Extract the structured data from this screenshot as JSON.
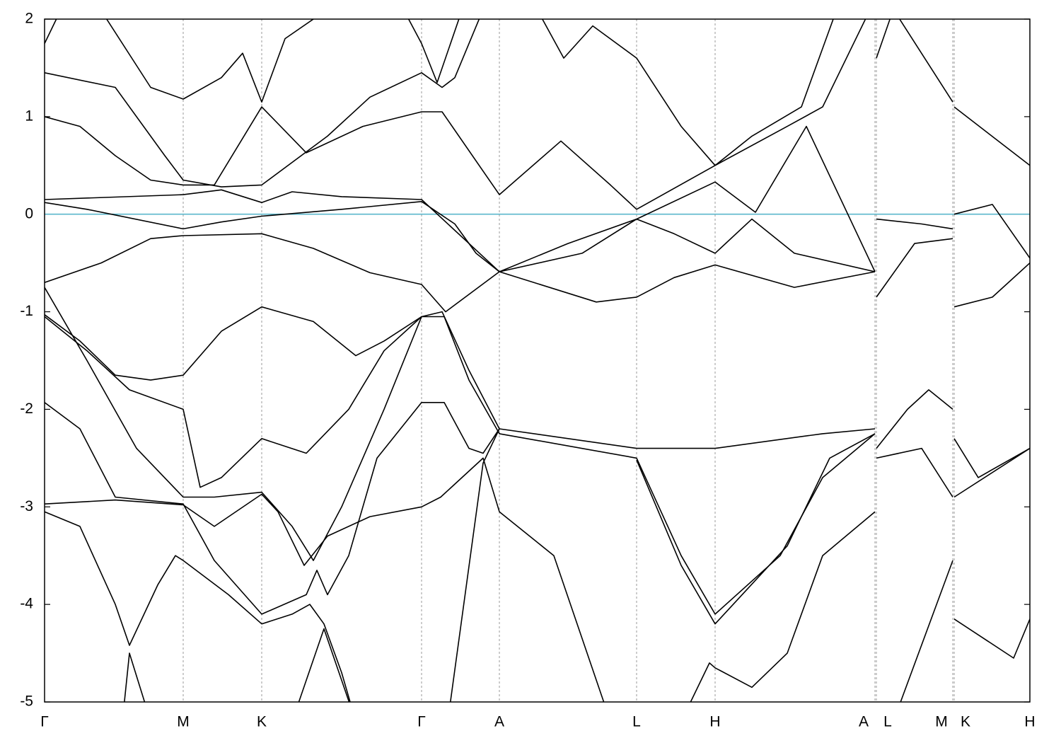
{
  "chart_data": {
    "type": "line",
    "color": "#000000",
    "fermi_level": 0,
    "fermi_color": "#5bb7cc",
    "grid": true,
    "xlim": [
      0,
      1393
    ],
    "ylim": [
      -5,
      2
    ],
    "yticks": [
      -5,
      -4,
      -3,
      -2,
      -1,
      0,
      1,
      2
    ],
    "xticks": [
      {
        "value": 0,
        "label": "Γ"
      },
      {
        "value": 196,
        "label": "M"
      },
      {
        "value": 307,
        "label": "K"
      },
      {
        "value": 533,
        "label": "Γ"
      },
      {
        "value": 643,
        "label": "A"
      },
      {
        "value": 837,
        "label": "L"
      },
      {
        "value": 948,
        "label": "H"
      },
      {
        "value": 1174,
        "label": "A"
      },
      {
        "value": 1176,
        "label": "L"
      },
      {
        "value": 1284,
        "label": "M"
      },
      {
        "value": 1286,
        "label": "K"
      },
      {
        "value": 1393,
        "label": "H"
      }
    ],
    "series": [
      {
        "x": [
          0,
          60,
          196,
          250,
          307,
          420,
          533,
          580,
          610,
          643,
          780,
          837,
          890,
          948,
          1060,
          1174
        ],
        "values": [
          0.12,
          0.05,
          -0.15,
          -0.08,
          -0.02,
          0.05,
          0.13,
          -0.1,
          -0.4,
          -0.59,
          -0.9,
          -0.85,
          -0.65,
          -0.52,
          -0.75,
          -0.59
        ]
      },
      {
        "x": [
          0,
          196,
          250,
          307,
          350,
          420,
          533,
          600,
          643,
          760,
          837,
          890,
          948,
          1000,
          1060,
          1174,
          null,
          1176,
          1240,
          1284,
          null,
          1286,
          1340,
          1393
        ],
        "values": [
          0.15,
          0.2,
          0.25,
          0.12,
          0.23,
          0.18,
          0.15,
          -0.3,
          -0.59,
          -0.4,
          -0.05,
          -0.2,
          -0.4,
          -0.05,
          -0.4,
          -0.59,
          null,
          -0.05,
          -0.1,
          -0.15,
          null,
          0.0,
          0.1,
          -0.45
        ]
      },
      {
        "x": [
          0,
          80,
          150,
          196,
          307,
          380,
          460,
          533,
          567,
          643,
          740,
          837,
          948,
          1005,
          1077,
          1174,
          null,
          1176,
          1230,
          1284,
          null,
          1286,
          1340,
          1393
        ],
        "values": [
          -0.7,
          -0.5,
          -0.25,
          -0.22,
          -0.2,
          -0.35,
          -0.6,
          -0.72,
          -1.0,
          -0.59,
          -0.3,
          -0.05,
          0.33,
          0.02,
          0.9,
          -0.59,
          null,
          -0.85,
          -0.3,
          -0.25,
          null,
          -0.95,
          -0.85,
          -0.5
        ]
      },
      {
        "x": [
          0,
          50,
          100,
          150,
          196,
          240,
          307,
          370,
          450,
          533,
          562,
          643,
          730,
          800,
          837,
          948,
          1050,
          1100,
          1174
        ],
        "values": [
          1.0,
          0.9,
          0.6,
          0.35,
          0.3,
          0.3,
          1.1,
          0.63,
          0.9,
          1.05,
          1.05,
          0.2,
          0.75,
          0.3,
          0.05,
          0.5,
          0.9,
          1.1,
          2.2
        ]
      },
      {
        "x": [
          0,
          100,
          170,
          196,
          250,
          307,
          400,
          460,
          533,
          562,
          580,
          643
        ],
        "values": [
          1.45,
          1.3,
          0.6,
          0.35,
          0.28,
          0.3,
          0.8,
          1.2,
          1.45,
          1.3,
          1.4,
          2.5
        ]
      },
      {
        "x": [
          0,
          30,
          null,
          70,
          150,
          196,
          250,
          280,
          307,
          340,
          390
        ],
        "values": [
          1.75,
          2.2,
          null,
          2.2,
          1.3,
          1.18,
          1.4,
          1.65,
          1.15,
          1.8,
          2.05
        ]
      },
      {
        "x": [
          500,
          533,
          555,
          600
        ],
        "values": [
          2.2,
          1.75,
          1.35,
          2.3
        ]
      },
      {
        "x": [
          700,
          734,
          775,
          837,
          900,
          948,
          1000,
          1070,
          1115
        ],
        "values": [
          2.05,
          1.6,
          1.93,
          1.6,
          0.9,
          0.5,
          0.8,
          1.1,
          2.0
        ]
      },
      {
        "x": [
          1176,
          1200,
          1284,
          null,
          1286,
          1393
        ],
        "values": [
          1.6,
          2.1,
          1.15,
          null,
          1.1,
          0.5
        ]
      },
      {
        "x": [
          0,
          50,
          100,
          150,
          196,
          250,
          307,
          380,
          440,
          480,
          533,
          562,
          600,
          643,
          837,
          948,
          1100,
          1174,
          null,
          1176,
          1220,
          1250,
          1284,
          null,
          1286,
          1320,
          1393
        ],
        "values": [
          -1.03,
          -1.3,
          -1.65,
          -1.7,
          -1.65,
          -1.2,
          -0.95,
          -1.1,
          -1.45,
          -1.3,
          -1.05,
          -1.0,
          -1.6,
          -2.2,
          -2.4,
          -2.4,
          -2.25,
          -2.2,
          null,
          -2.4,
          -2.0,
          -1.8,
          -2.0,
          null,
          -2.3,
          -2.7,
          -2.4
        ]
      },
      {
        "x": [
          0,
          60,
          120,
          196,
          220,
          250,
          307,
          370,
          430,
          480,
          533,
          565,
          600,
          643,
          837,
          900,
          948,
          1040,
          1100,
          1174,
          null,
          1176,
          1240,
          1284,
          null,
          1286,
          1393
        ],
        "values": [
          -1.05,
          -1.4,
          -1.8,
          -2.0,
          -2.8,
          -2.7,
          -2.3,
          -2.45,
          -2.0,
          -1.4,
          -1.05,
          -1.05,
          -1.7,
          -2.25,
          -2.5,
          -3.5,
          -4.1,
          -3.5,
          -2.7,
          -2.25,
          null,
          -2.5,
          -2.4,
          -2.9,
          null,
          -2.9,
          -2.4
        ]
      },
      {
        "x": [
          0,
          60,
          130,
          196,
          240,
          307,
          350,
          380,
          420,
          480,
          533
        ],
        "values": [
          -0.75,
          -1.5,
          -2.4,
          -2.9,
          -2.9,
          -2.85,
          -3.2,
          -3.55,
          -3.0,
          -2.0,
          -1.05
        ]
      },
      {
        "x": [
          0,
          50,
          100,
          196,
          240,
          307,
          370,
          385,
          400,
          430,
          470,
          533,
          565,
          600,
          620,
          643
        ],
        "values": [
          -1.93,
          -2.2,
          -2.9,
          -2.97,
          -3.55,
          -4.1,
          -3.9,
          -3.65,
          -3.9,
          -3.5,
          -2.5,
          -1.93,
          -1.93,
          -2.4,
          -2.45,
          -2.2
        ]
      },
      {
        "x": [
          0,
          100,
          196,
          240,
          307,
          330,
          367,
          400,
          460,
          533,
          560,
          620,
          643,
          720,
          800
        ],
        "values": [
          -2.97,
          -2.93,
          -2.98,
          -3.2,
          -2.87,
          -3.05,
          -3.6,
          -3.3,
          -3.1,
          -3.0,
          -2.9,
          -2.5,
          -3.05,
          -3.5,
          -5.2
        ]
      },
      {
        "x": [
          0,
          50,
          100,
          120,
          160,
          185,
          196,
          260,
          307,
          350,
          375,
          395,
          420,
          440
        ],
        "values": [
          -3.05,
          -3.2,
          -4.0,
          -4.42,
          -3.8,
          -3.5,
          -3.55,
          -3.9,
          -4.2,
          -4.1,
          -4.0,
          -4.2,
          -4.7,
          -5.2
        ]
      },
      {
        "x": [
          110,
          120,
          150
        ],
        "values": [
          -5.2,
          -4.5,
          -5.2
        ]
      },
      {
        "x": [
          350,
          395,
          440
        ],
        "values": [
          -5.2,
          -4.25,
          -5.2
        ]
      },
      {
        "x": [
          570,
          620,
          643
        ],
        "values": [
          -5.2,
          -2.55,
          -2.2
        ]
      },
      {
        "x": [
          900,
          940,
          948,
          1000,
          1050,
          1100,
          1174,
          null,
          1200,
          1284,
          null,
          1286,
          1370,
          1393
        ],
        "values": [
          -5.2,
          -4.6,
          -4.65,
          -4.85,
          -4.5,
          -3.5,
          -3.05,
          null,
          -5.2,
          -3.55,
          null,
          -4.15,
          -4.55,
          -4.15
        ]
      },
      {
        "x": [
          837,
          900,
          948,
          1050,
          1110,
          1174
        ],
        "values": [
          -2.52,
          -3.6,
          -4.2,
          -3.4,
          -2.5,
          -2.25
        ]
      }
    ]
  }
}
